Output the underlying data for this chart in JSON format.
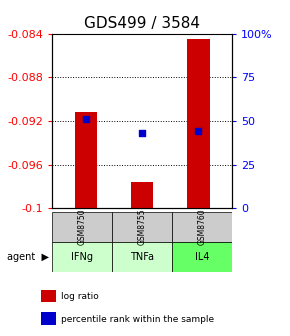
{
  "title": "GDS499 / 3584",
  "samples": [
    "GSM8750",
    "GSM8755",
    "GSM8760"
  ],
  "agents": [
    "IFNg",
    "TNFa",
    "IL4"
  ],
  "log_ratios": [
    -0.0912,
    -0.0976,
    -0.0845
  ],
  "percentile_ranks": [
    0.51,
    0.43,
    0.44
  ],
  "ylim_left": [
    -0.1,
    -0.084
  ],
  "ylim_right": [
    0,
    100
  ],
  "yticks_left": [
    -0.1,
    -0.096,
    -0.092,
    -0.088,
    -0.084
  ],
  "yticks_right": [
    0,
    25,
    50,
    75,
    100
  ],
  "bar_color": "#cc0000",
  "dot_color": "#0000cc",
  "agent_colors": [
    "#ccffcc",
    "#ccffcc",
    "#66ff66"
  ],
  "sample_bg_color": "#cccccc",
  "legend_bar_color": "#cc0000",
  "legend_dot_color": "#0000cc",
  "title_fontsize": 11,
  "tick_fontsize": 8,
  "bar_width": 0.4
}
